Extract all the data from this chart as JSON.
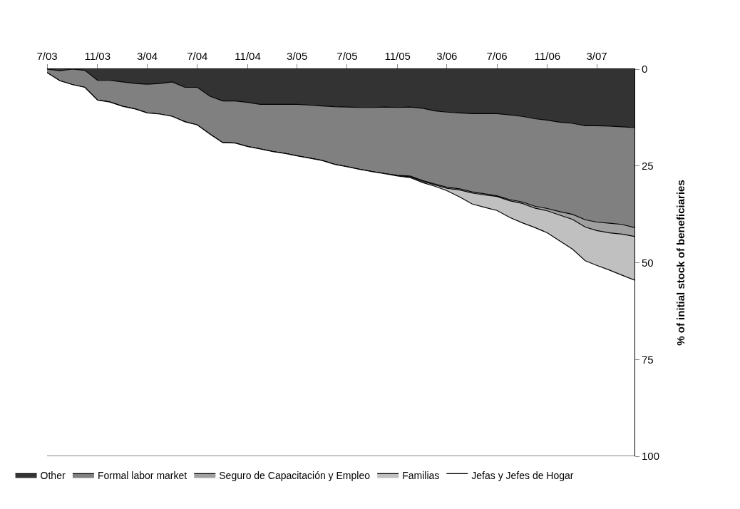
{
  "chart_data": {
    "type": "area",
    "stacked": true,
    "ylabel": "% of initial stock of beneficiaries",
    "x": [
      "2003-07",
      "2003-08",
      "2003-09",
      "2003-10",
      "2003-11",
      "2003-12",
      "2004-01",
      "2004-02",
      "2004-03",
      "2004-04",
      "2004-05",
      "2004-06",
      "2004-07",
      "2004-08",
      "2004-09",
      "2004-10",
      "2004-11",
      "2004-12",
      "2005-01",
      "2005-02",
      "2005-03",
      "2005-04",
      "2005-05",
      "2005-06",
      "2005-07",
      "2005-08",
      "2005-09",
      "2005-10",
      "2005-11",
      "2005-12",
      "2006-01",
      "2006-02",
      "2006-03",
      "2006-04",
      "2006-05",
      "2006-06",
      "2006-07",
      "2006-08",
      "2006-09",
      "2006-10",
      "2006-11",
      "2006-12",
      "2007-01",
      "2007-02",
      "2007-03",
      "2007-04",
      "2007-05",
      "2007-06"
    ],
    "xlim": [
      "2003-07",
      "2007-06"
    ],
    "xticks": [
      {
        "value": "2003-07",
        "label": "7/03"
      },
      {
        "value": "2003-11",
        "label": "11/03"
      },
      {
        "value": "2004-03",
        "label": "3/04"
      },
      {
        "value": "2004-07",
        "label": "7/04"
      },
      {
        "value": "2004-11",
        "label": "11/04"
      },
      {
        "value": "2005-03",
        "label": "3/05"
      },
      {
        "value": "2005-07",
        "label": "7/05"
      },
      {
        "value": "2005-11",
        "label": "11/05"
      },
      {
        "value": "2006-03",
        "label": "3/06"
      },
      {
        "value": "2006-07",
        "label": "7/06"
      },
      {
        "value": "2006-11",
        "label": "11/06"
      },
      {
        "value": "2007-03",
        "label": "3/07"
      }
    ],
    "ylim": [
      100,
      0
    ],
    "yticks": [
      0,
      25,
      50,
      75,
      100
    ],
    "legend": "bottom",
    "series": [
      {
        "name": "Other",
        "color": "#333333",
        "values": [
          0,
          0.4,
          0,
          0.3,
          2.9,
          2.9,
          3.3,
          3.7,
          3.9,
          3.7,
          3.3,
          4.7,
          4.7,
          7.0,
          8.2,
          8.2,
          8.6,
          9.1,
          9.1,
          9.1,
          9.1,
          9.3,
          9.5,
          9.7,
          9.8,
          9.9,
          9.9,
          9.8,
          9.9,
          9.8,
          10.1,
          10.8,
          11.1,
          11.3,
          11.5,
          11.5,
          11.5,
          11.8,
          12.2,
          12.8,
          13.2,
          13.7,
          14.0,
          14.6,
          14.6,
          14.7,
          14.9,
          15.1
        ]
      },
      {
        "name": "Formal labor market",
        "color": "#808080",
        "values": [
          0.9,
          2.6,
          4.0,
          4.4,
          5.1,
          5.6,
          6.3,
          6.6,
          7.4,
          7.9,
          8.9,
          8.9,
          9.7,
          9.8,
          10.8,
          10.9,
          11.4,
          11.5,
          12.2,
          12.7,
          13.3,
          13.7,
          14.1,
          14.9,
          15.4,
          16.0,
          16.6,
          17.2,
          17.5,
          17.8,
          18.7,
          18.9,
          19.4,
          19.6,
          20.2,
          20.7,
          21.2,
          21.9,
          22.1,
          22.6,
          22.8,
          23.1,
          23.5,
          24.3,
          24.9,
          25.1,
          25.2,
          25.8
        ]
      },
      {
        "name": "Seguro de Capacitación y Empleo",
        "color": "#a0a0a0",
        "values": [
          0,
          0,
          0,
          0,
          0,
          0,
          0,
          0,
          0,
          0,
          0,
          0,
          0,
          0,
          0,
          0,
          0,
          0,
          0,
          0,
          0,
          0,
          0,
          0,
          0,
          0,
          0,
          0,
          0.1,
          0.2,
          0.2,
          0.2,
          0.3,
          0.3,
          0.3,
          0.3,
          0.2,
          0.3,
          0.4,
          0.5,
          0.6,
          0.9,
          1.3,
          1.9,
          2.2,
          2.5,
          2.5,
          2.3
        ]
      },
      {
        "name": "Familias",
        "color": "#c0c0c0",
        "values": [
          0,
          0,
          0,
          0,
          0,
          0,
          0,
          0,
          0,
          0,
          0,
          0,
          0,
          0,
          0,
          0,
          0,
          0,
          0,
          0,
          0,
          0,
          0,
          0,
          0,
          0,
          0,
          0,
          0.1,
          0.2,
          0.3,
          0.4,
          0.6,
          1.8,
          2.8,
          3.2,
          3.6,
          4.3,
          5.0,
          5.0,
          5.7,
          6.7,
          7.7,
          8.7,
          9.0,
          9.6,
          10.6,
          11.3
        ]
      },
      {
        "name": "Jefas y Jefes de Hogar",
        "color": "#ffffff",
        "values": [
          99.1,
          97.0,
          96.0,
          95.3,
          92.0,
          91.5,
          90.4,
          89.7,
          88.7,
          88.4,
          87.8,
          86.4,
          85.6,
          83.2,
          81.0,
          80.9,
          80.0,
          79.4,
          78.7,
          78.2,
          77.6,
          77.0,
          76.4,
          75.4,
          74.8,
          74.1,
          73.5,
          73.0,
          72.4,
          72.0,
          70.7,
          69.7,
          68.6,
          67.0,
          65.2,
          64.3,
          63.5,
          61.7,
          60.3,
          59.1,
          57.7,
          55.6,
          53.5,
          50.5,
          49.3,
          48.1,
          46.8,
          45.5
        ]
      }
    ]
  }
}
